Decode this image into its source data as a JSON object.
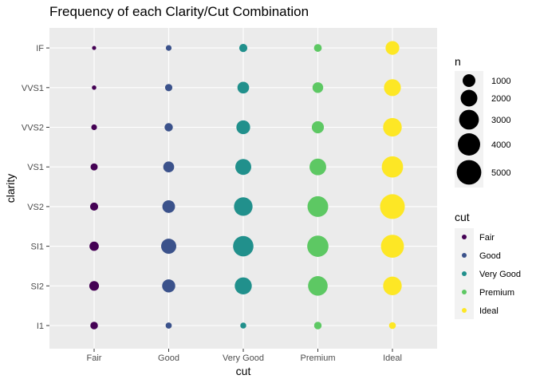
{
  "chart_data": {
    "type": "scatter",
    "title": "Frequency of each Clarity/Cut Combination",
    "xlabel": "cut",
    "ylabel": "clarity",
    "x_categories": [
      "Fair",
      "Good",
      "Very Good",
      "Premium",
      "Ideal"
    ],
    "y_categories": [
      "I1",
      "SI2",
      "SI1",
      "VS2",
      "VS1",
      "VVS2",
      "VVS1",
      "IF"
    ],
    "points": [
      {
        "cut": "Fair",
        "clarity": "I1",
        "n": 210
      },
      {
        "cut": "Fair",
        "clarity": "SI2",
        "n": 466
      },
      {
        "cut": "Fair",
        "clarity": "SI1",
        "n": 408
      },
      {
        "cut": "Fair",
        "clarity": "VS2",
        "n": 261
      },
      {
        "cut": "Fair",
        "clarity": "VS1",
        "n": 170
      },
      {
        "cut": "Fair",
        "clarity": "VVS2",
        "n": 69
      },
      {
        "cut": "Fair",
        "clarity": "VVS1",
        "n": 17
      },
      {
        "cut": "Fair",
        "clarity": "IF",
        "n": 9
      },
      {
        "cut": "Good",
        "clarity": "I1",
        "n": 96
      },
      {
        "cut": "Good",
        "clarity": "SI2",
        "n": 1081
      },
      {
        "cut": "Good",
        "clarity": "SI1",
        "n": 1560
      },
      {
        "cut": "Good",
        "clarity": "VS2",
        "n": 978
      },
      {
        "cut": "Good",
        "clarity": "VS1",
        "n": 648
      },
      {
        "cut": "Good",
        "clarity": "VVS2",
        "n": 286
      },
      {
        "cut": "Good",
        "clarity": "VVS1",
        "n": 186
      },
      {
        "cut": "Good",
        "clarity": "IF",
        "n": 71
      },
      {
        "cut": "Very Good",
        "clarity": "I1",
        "n": 84
      },
      {
        "cut": "Very Good",
        "clarity": "SI2",
        "n": 2100
      },
      {
        "cut": "Very Good",
        "clarity": "SI1",
        "n": 3240
      },
      {
        "cut": "Very Good",
        "clarity": "VS2",
        "n": 2591
      },
      {
        "cut": "Very Good",
        "clarity": "VS1",
        "n": 1775
      },
      {
        "cut": "Very Good",
        "clarity": "VVS2",
        "n": 1235
      },
      {
        "cut": "Very Good",
        "clarity": "VVS1",
        "n": 789
      },
      {
        "cut": "Very Good",
        "clarity": "IF",
        "n": 268
      },
      {
        "cut": "Premium",
        "clarity": "I1",
        "n": 205
      },
      {
        "cut": "Premium",
        "clarity": "SI2",
        "n": 2949
      },
      {
        "cut": "Premium",
        "clarity": "SI1",
        "n": 3575
      },
      {
        "cut": "Premium",
        "clarity": "VS2",
        "n": 3357
      },
      {
        "cut": "Premium",
        "clarity": "VS1",
        "n": 1989
      },
      {
        "cut": "Premium",
        "clarity": "VVS2",
        "n": 870
      },
      {
        "cut": "Premium",
        "clarity": "VVS1",
        "n": 616
      },
      {
        "cut": "Premium",
        "clarity": "IF",
        "n": 230
      },
      {
        "cut": "Ideal",
        "clarity": "I1",
        "n": 146
      },
      {
        "cut": "Ideal",
        "clarity": "SI2",
        "n": 2598
      },
      {
        "cut": "Ideal",
        "clarity": "SI1",
        "n": 4282
      },
      {
        "cut": "Ideal",
        "clarity": "VS2",
        "n": 5071
      },
      {
        "cut": "Ideal",
        "clarity": "VS1",
        "n": 3589
      },
      {
        "cut": "Ideal",
        "clarity": "VVS2",
        "n": 2606
      },
      {
        "cut": "Ideal",
        "clarity": "VVS1",
        "n": 2047
      },
      {
        "cut": "Ideal",
        "clarity": "IF",
        "n": 1212
      }
    ],
    "size_legend": {
      "title": "n",
      "breaks": [
        1000,
        2000,
        3000,
        4000,
        5000
      ]
    },
    "color_legend": {
      "title": "cut",
      "entries": [
        {
          "label": "Fair",
          "color": "#440154"
        },
        {
          "label": "Good",
          "color": "#3B528B"
        },
        {
          "label": "Very Good",
          "color": "#21908C"
        },
        {
          "label": "Premium",
          "color": "#5DC863"
        },
        {
          "label": "Ideal",
          "color": "#FDE725"
        }
      ]
    },
    "grid": true,
    "panel_background": "#EBEBEB",
    "legend_position": "right"
  }
}
